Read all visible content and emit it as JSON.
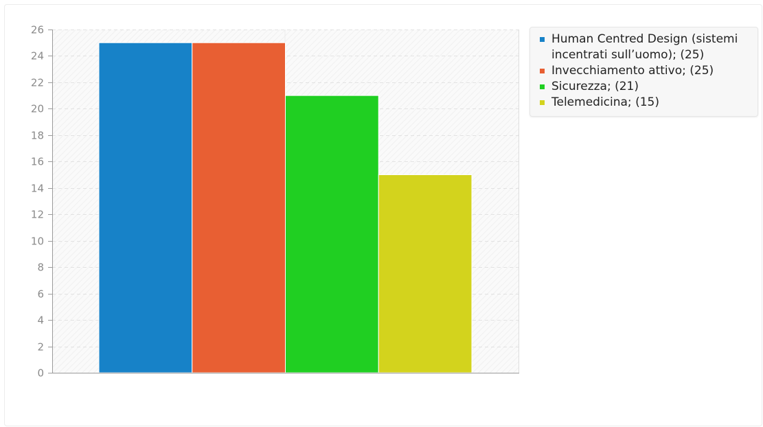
{
  "chart_data": {
    "type": "bar",
    "categories": [
      "Human Centred Design (sistemi incentrati sull’uomo)",
      "Invecchiamento attivo",
      "Sicurezza",
      "Telemedicina"
    ],
    "values": [
      25,
      25,
      21,
      15
    ],
    "colors": [
      "#1782c8",
      "#e85f33",
      "#20cf22",
      "#d3d31d"
    ],
    "ylim": [
      0,
      26
    ],
    "yticks": [
      "0",
      "2",
      "4",
      "6",
      "8",
      "10",
      "12",
      "14",
      "16",
      "18",
      "20",
      "22",
      "24",
      "26"
    ],
    "title": "",
    "xlabel": "",
    "ylabel": "",
    "grid": true,
    "legend_position": "right",
    "legend": [
      "Human Centred Design (sistemi incentrati sull’uomo); (25)",
      "Invecchiamento attivo; (25)",
      "Sicurezza; (21)",
      "Telemedicina; (15)"
    ]
  }
}
